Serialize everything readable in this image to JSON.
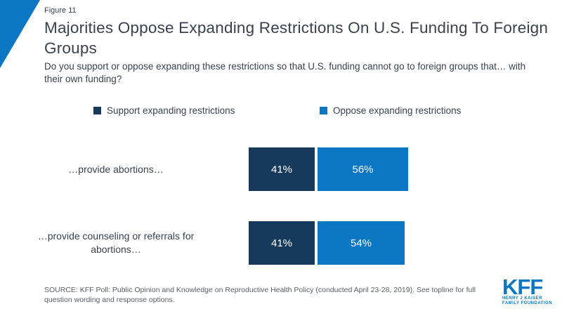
{
  "figure_label": "Figure 11",
  "title": "Majorities Oppose Expanding Restrictions On U.S. Funding To Foreign Groups",
  "subtitle": "Do you support or oppose expanding these restrictions so that U.S. funding cannot go to foreign groups that… with their own funding?",
  "colors": {
    "accent_blue": "#0B76C3",
    "navy": "#17395C",
    "title_text": "#39424E",
    "source_text": "#5A6066",
    "bar_value_text": "#FFFFFF"
  },
  "legend": [
    {
      "label": "Support expanding restrictions",
      "color": "#17395C"
    },
    {
      "label": "Oppose expanding restrictions",
      "color": "#0B76C3"
    }
  ],
  "chart_data": {
    "type": "bar",
    "orientation": "horizontal",
    "categories": [
      "…provide abortions…",
      "…provide counseling or referrals for abortions…"
    ],
    "series": [
      {
        "name": "Support expanding restrictions",
        "color": "#17395C",
        "values": [
          41,
          41
        ]
      },
      {
        "name": "Oppose expanding restrictions",
        "color": "#0B76C3",
        "values": [
          56,
          54
        ]
      }
    ],
    "value_format": "percent",
    "value_labels_shown": true,
    "xlim": [
      0,
      100
    ],
    "grid": false,
    "legend_position": "top"
  },
  "source": "SOURCE: KFF Poll: Public Opinion and Knowledge on Reproductive Health Policy (conducted April 23-28, 2019). See topline for full question wording and response options.",
  "logo": {
    "text": "KFF",
    "line1": "HENRY J KAISER",
    "line2": "FAMILY FOUNDATION"
  }
}
